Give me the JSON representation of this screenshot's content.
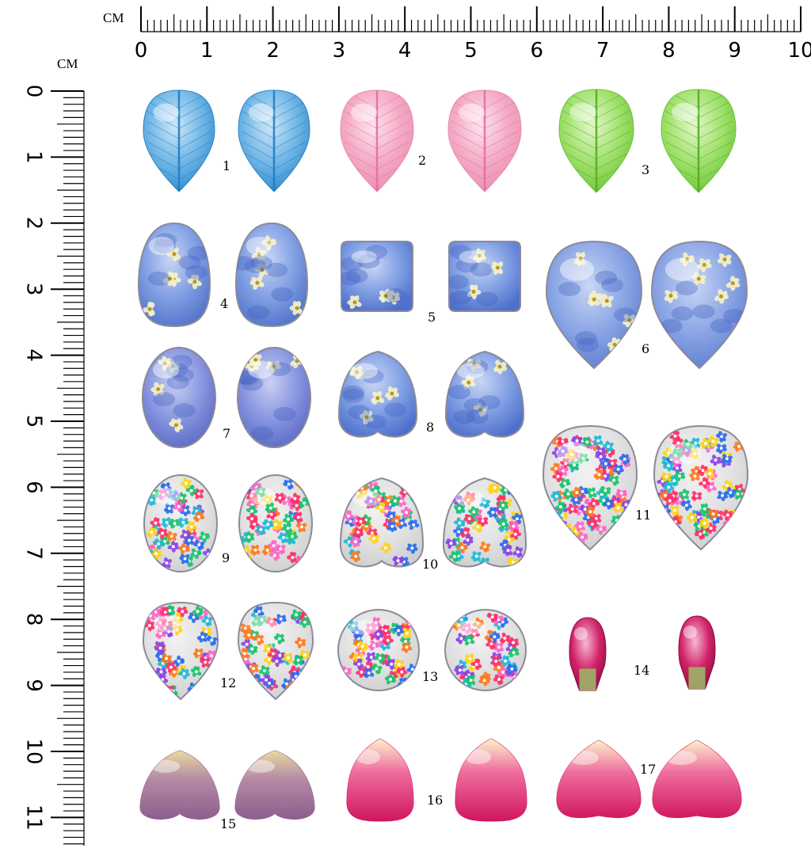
{
  "top_ruler": {
    "unit": "CM",
    "labels": [
      "0",
      "1",
      "2",
      "3",
      "4",
      "5",
      "6",
      "7",
      "8",
      "9",
      "10"
    ]
  },
  "left_ruler": {
    "unit": "CM",
    "labels": [
      "0",
      "1",
      "2",
      "3",
      "4",
      "5",
      "6",
      "7",
      "8",
      "9",
      "10",
      "11"
    ]
  },
  "items": [
    {
      "label": "1",
      "shape": "teardrop-up",
      "colors": [
        "#cfe6f7",
        "#6fb6e6",
        "#2d86c7"
      ],
      "accent": "#1f7fc4",
      "veins": true
    },
    {
      "label": "2",
      "shape": "teardrop-up",
      "colors": [
        "#fde4ee",
        "#f4a9c4",
        "#e98eb1"
      ],
      "accent": "#e56e9e",
      "veins": true
    },
    {
      "label": "3",
      "shape": "teardrop-up",
      "colors": [
        "#e4f7c9",
        "#9ee06a",
        "#6cc238"
      ],
      "accent": "#54ad25",
      "veins": true
    },
    {
      "label": "4",
      "shape": "teardrop-down",
      "colors": [
        "#c9d6f5",
        "#7f9ee3",
        "#5273c9"
      ],
      "accent": "#f3f0c8",
      "flowers": "blue"
    },
    {
      "label": "5",
      "shape": "square",
      "colors": [
        "#c9d6f5",
        "#7f9ee3",
        "#4e6fcc"
      ],
      "accent": "#f3f0c8",
      "flowers": "blue"
    },
    {
      "label": "6",
      "shape": "teardrop-up",
      "colors": [
        "#c9d6f5",
        "#8aa5e5",
        "#5c7dd0"
      ],
      "accent": "#f3f0c8",
      "flowers": "blue"
    },
    {
      "label": "7",
      "shape": "oval",
      "colors": [
        "#c9d0f3",
        "#8794df",
        "#5b68c4"
      ],
      "accent": "#f3f0c8",
      "flowers": "blue"
    },
    {
      "label": "8",
      "shape": "heart",
      "colors": [
        "#c9d6f5",
        "#7f9ee3",
        "#4e6fcc"
      ],
      "accent": "#f3f0c8",
      "flowers": "blue"
    },
    {
      "label": "9",
      "shape": "oval",
      "colors": [
        "#f2f2f2",
        "#e2e2e2",
        "#cfcfcf"
      ],
      "accent": "#ff5fa8",
      "flowers": "multi"
    },
    {
      "label": "10",
      "shape": "heart",
      "colors": [
        "#f2f2f2",
        "#e2e2e2",
        "#cfcfcf"
      ],
      "accent": "#ff5fa8",
      "flowers": "multi"
    },
    {
      "label": "11",
      "shape": "teardrop-up",
      "colors": [
        "#f2f2f2",
        "#e2e2e2",
        "#cfcfcf"
      ],
      "accent": "#ff5fa8",
      "flowers": "multi"
    },
    {
      "label": "12",
      "shape": "teardrop-up",
      "colors": [
        "#f2f2f2",
        "#e2e2e2",
        "#cfcfcf"
      ],
      "accent": "#ff5fa8",
      "flowers": "multi"
    },
    {
      "label": "13",
      "shape": "circle",
      "colors": [
        "#f2f2f2",
        "#e2e2e2",
        "#cfcfcf"
      ],
      "accent": "#ff5fa8",
      "flowers": "multi"
    },
    {
      "label": "14",
      "shape": "bud",
      "colors": [
        "#f7b9d2",
        "#d1226a",
        "#8e0e40"
      ],
      "accent": "#9fb36a"
    },
    {
      "label": "15",
      "shape": "heart-petal",
      "colors": [
        "#e8d9a0",
        "#b58aa5",
        "#8a5c8d"
      ],
      "accent": "#7e4f7e"
    },
    {
      "label": "16",
      "shape": "petal",
      "colors": [
        "#fbf1c9",
        "#ef6e9f",
        "#d0165e"
      ],
      "accent": "#c81157"
    },
    {
      "label": "17",
      "shape": "petal-wide",
      "colors": [
        "#fbf1c9",
        "#ef6e9f",
        "#d0165e"
      ],
      "accent": "#c81157"
    }
  ],
  "palette": {
    "flower_colors": [
      "#ff2f6a",
      "#ffd21a",
      "#1fb9d6",
      "#8c43e6",
      "#ff7a1f",
      "#19c46b",
      "#2a6cf0",
      "#ff66c4"
    ],
    "blue_flower_center": "#b49a1e"
  }
}
